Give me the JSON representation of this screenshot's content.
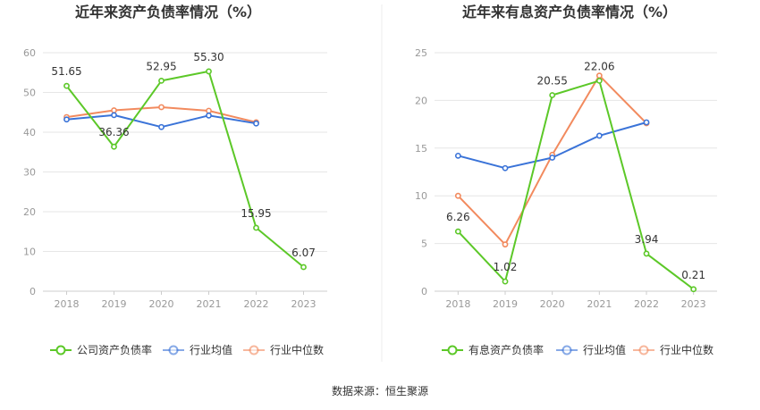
{
  "source": "数据来源：恒生聚源",
  "chart_data": [
    {
      "type": "line",
      "title": "近年来资产负债率情况（%）",
      "categories": [
        "2018",
        "2019",
        "2020",
        "2021",
        "2022",
        "2023"
      ],
      "ylim": [
        0,
        60
      ],
      "yticks": [
        0,
        10,
        20,
        30,
        40,
        50,
        60
      ],
      "grid": true,
      "legend_position": "bottom",
      "series": [
        {
          "name": "公司资产负债率",
          "color": "#5cc828",
          "values": [
            51.65,
            36.36,
            52.95,
            55.3,
            15.95,
            6.07
          ],
          "labels": [
            "51.65",
            "36.36",
            "52.95",
            "55.30",
            "15.95",
            "6.07"
          ]
        },
        {
          "name": "行业均值",
          "color": "#3a73d8",
          "values": [
            43.2,
            44.3,
            41.3,
            44.2,
            42.2,
            null
          ],
          "labels": []
        },
        {
          "name": "行业中位数",
          "color": "#f28a5e",
          "values": [
            43.8,
            45.5,
            46.3,
            45.4,
            42.5,
            null
          ],
          "labels": []
        }
      ]
    },
    {
      "type": "line",
      "title": "近年来有息资产负债率情况（%）",
      "categories": [
        "2018",
        "2019",
        "2020",
        "2021",
        "2022",
        "2023"
      ],
      "ylim": [
        0,
        25
      ],
      "yticks": [
        0,
        5,
        10,
        15,
        20,
        25
      ],
      "grid": true,
      "legend_position": "bottom",
      "series": [
        {
          "name": "有息资产负债率",
          "color": "#5cc828",
          "values": [
            6.26,
            1.02,
            20.55,
            22.06,
            3.94,
            0.21
          ],
          "labels": [
            "6.26",
            "1.02",
            "20.55",
            "22.06",
            "3.94",
            "0.21"
          ]
        },
        {
          "name": "行业均值",
          "color": "#3a73d8",
          "values": [
            14.2,
            12.9,
            14.0,
            16.3,
            17.7,
            null
          ],
          "labels": []
        },
        {
          "name": "行业中位数",
          "color": "#f28a5e",
          "values": [
            10.0,
            4.9,
            14.3,
            22.6,
            17.6,
            null
          ],
          "labels": []
        }
      ]
    }
  ]
}
